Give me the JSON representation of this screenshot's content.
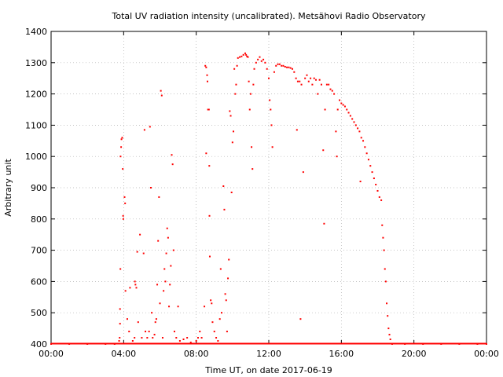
{
  "chart_data": {
    "type": "scatter",
    "title": "Total UV radiation intensity (uncalibrated). Metsähovi Radio Observatory",
    "xlabel": "Time UT, on date 2017-06-19",
    "ylabel": "Arbitrary unit",
    "xlim": [
      0,
      24
    ],
    "ylim": [
      400,
      1400
    ],
    "x_ticks": [
      "00:00",
      "04:00",
      "08:00",
      "12:00",
      "16:00",
      "20:00",
      "00:00"
    ],
    "y_ticks": [
      400,
      500,
      600,
      700,
      800,
      900,
      1000,
      1100,
      1200,
      1300,
      1400
    ],
    "grid": true,
    "legend": "none",
    "series_color": "#ff0000",
    "series": [
      {
        "x_unit": "hours UT",
        "points": [
          [
            0.0,
            400
          ],
          [
            1.0,
            400
          ],
          [
            2.0,
            400
          ],
          [
            3.0,
            400
          ],
          [
            3.5,
            400
          ],
          [
            3.75,
            410
          ],
          [
            3.78,
            420
          ],
          [
            3.8,
            465
          ],
          [
            3.8,
            512
          ],
          [
            3.82,
            640
          ],
          [
            3.83,
            1000
          ],
          [
            3.86,
            1030
          ],
          [
            3.88,
            1055
          ],
          [
            3.92,
            1060
          ],
          [
            3.95,
            960
          ],
          [
            3.97,
            810
          ],
          [
            3.98,
            800
          ],
          [
            4.05,
            870
          ],
          [
            4.08,
            850
          ],
          [
            4.1,
            570
          ],
          [
            4.2,
            480
          ],
          [
            4.3,
            440
          ],
          [
            4.35,
            580
          ],
          [
            4.5,
            410
          ],
          [
            4.6,
            420
          ],
          [
            4.62,
            600
          ],
          [
            4.65,
            590
          ],
          [
            4.7,
            580
          ],
          [
            4.75,
            695
          ],
          [
            4.8,
            470
          ],
          [
            4.9,
            750
          ],
          [
            5.0,
            420
          ],
          [
            5.1,
            690
          ],
          [
            5.15,
            1085
          ],
          [
            5.2,
            440
          ],
          [
            5.3,
            420
          ],
          [
            5.4,
            440
          ],
          [
            5.45,
            1095
          ],
          [
            5.5,
            900
          ],
          [
            5.55,
            500
          ],
          [
            5.6,
            420
          ],
          [
            5.7,
            430
          ],
          [
            5.75,
            470
          ],
          [
            5.8,
            480
          ],
          [
            5.85,
            590
          ],
          [
            5.9,
            730
          ],
          [
            5.95,
            870
          ],
          [
            6.0,
            530
          ],
          [
            6.05,
            1210
          ],
          [
            6.1,
            1195
          ],
          [
            6.15,
            420
          ],
          [
            6.2,
            570
          ],
          [
            6.25,
            640
          ],
          [
            6.3,
            600
          ],
          [
            6.35,
            690
          ],
          [
            6.4,
            770
          ],
          [
            6.45,
            740
          ],
          [
            6.5,
            520
          ],
          [
            6.55,
            590
          ],
          [
            6.6,
            650
          ],
          [
            6.65,
            1005
          ],
          [
            6.7,
            975
          ],
          [
            6.75,
            700
          ],
          [
            6.8,
            440
          ],
          [
            6.9,
            420
          ],
          [
            7.0,
            520
          ],
          [
            7.1,
            410
          ],
          [
            7.3,
            415
          ],
          [
            7.5,
            420
          ],
          [
            7.7,
            405
          ],
          [
            8.0,
            410
          ],
          [
            8.1,
            420
          ],
          [
            8.2,
            440
          ],
          [
            8.3,
            420
          ],
          [
            8.45,
            520
          ],
          [
            8.5,
            1290
          ],
          [
            8.55,
            1285
          ],
          [
            8.55,
            1010
          ],
          [
            8.6,
            1260
          ],
          [
            8.62,
            1240
          ],
          [
            8.65,
            1150
          ],
          [
            8.7,
            1150
          ],
          [
            8.72,
            970
          ],
          [
            8.73,
            810
          ],
          [
            8.75,
            680
          ],
          [
            8.8,
            540
          ],
          [
            8.85,
            530
          ],
          [
            8.9,
            470
          ],
          [
            9.0,
            440
          ],
          [
            9.1,
            420
          ],
          [
            9.2,
            410
          ],
          [
            9.3,
            480
          ],
          [
            9.35,
            640
          ],
          [
            9.4,
            500
          ],
          [
            9.5,
            905
          ],
          [
            9.55,
            830
          ],
          [
            9.6,
            560
          ],
          [
            9.65,
            540
          ],
          [
            9.7,
            440
          ],
          [
            9.75,
            610
          ],
          [
            9.8,
            670
          ],
          [
            9.85,
            1145
          ],
          [
            9.9,
            1130
          ],
          [
            9.95,
            885
          ],
          [
            10.0,
            1045
          ],
          [
            10.05,
            1080
          ],
          [
            10.1,
            1280
          ],
          [
            10.15,
            1200
          ],
          [
            10.2,
            1230
          ],
          [
            10.25,
            1290
          ],
          [
            10.3,
            1315
          ],
          [
            10.4,
            1318
          ],
          [
            10.5,
            1320
          ],
          [
            10.6,
            1325
          ],
          [
            10.7,
            1330
          ],
          [
            10.75,
            1325
          ],
          [
            10.8,
            1320
          ],
          [
            10.85,
            1318
          ],
          [
            10.9,
            1240
          ],
          [
            10.95,
            1150
          ],
          [
            11.0,
            1200
          ],
          [
            11.05,
            1030
          ],
          [
            11.1,
            960
          ],
          [
            11.15,
            1230
          ],
          [
            11.2,
            1280
          ],
          [
            11.3,
            1300
          ],
          [
            11.4,
            1310
          ],
          [
            11.5,
            1318
          ],
          [
            11.6,
            1305
          ],
          [
            11.7,
            1310
          ],
          [
            11.8,
            1300
          ],
          [
            11.9,
            1280
          ],
          [
            12.0,
            1250
          ],
          [
            12.05,
            1180
          ],
          [
            12.1,
            1150
          ],
          [
            12.15,
            1100
          ],
          [
            12.2,
            1030
          ],
          [
            12.3,
            1270
          ],
          [
            12.4,
            1290
          ],
          [
            12.5,
            1295
          ],
          [
            12.6,
            1295
          ],
          [
            12.7,
            1290
          ],
          [
            12.8,
            1290
          ],
          [
            12.9,
            1287
          ],
          [
            13.0,
            1285
          ],
          [
            13.1,
            1285
          ],
          [
            13.2,
            1283
          ],
          [
            13.3,
            1280
          ],
          [
            13.4,
            1270
          ],
          [
            13.5,
            1250
          ],
          [
            13.55,
            1085
          ],
          [
            13.6,
            1240
          ],
          [
            13.7,
            1240
          ],
          [
            13.75,
            480
          ],
          [
            13.8,
            1230
          ],
          [
            13.9,
            950
          ],
          [
            14.0,
            1250
          ],
          [
            14.1,
            1260
          ],
          [
            14.2,
            1240
          ],
          [
            14.3,
            1250
          ],
          [
            14.4,
            1230
          ],
          [
            14.5,
            1250
          ],
          [
            14.6,
            1245
          ],
          [
            14.7,
            1200
          ],
          [
            14.8,
            1245
          ],
          [
            14.9,
            1230
          ],
          [
            15.0,
            1020
          ],
          [
            15.05,
            785
          ],
          [
            15.1,
            1150
          ],
          [
            15.2,
            1230
          ],
          [
            15.3,
            1230
          ],
          [
            15.4,
            1215
          ],
          [
            15.5,
            1210
          ],
          [
            15.6,
            1200
          ],
          [
            15.7,
            1080
          ],
          [
            15.75,
            1000
          ],
          [
            15.8,
            1150
          ],
          [
            15.9,
            1180
          ],
          [
            16.0,
            1170
          ],
          [
            16.1,
            1165
          ],
          [
            16.2,
            1160
          ],
          [
            16.3,
            1150
          ],
          [
            16.4,
            1140
          ],
          [
            16.5,
            1130
          ],
          [
            16.6,
            1120
          ],
          [
            16.7,
            1110
          ],
          [
            16.8,
            1100
          ],
          [
            16.9,
            1090
          ],
          [
            17.0,
            1080
          ],
          [
            17.05,
            920
          ],
          [
            17.1,
            1060
          ],
          [
            17.2,
            1050
          ],
          [
            17.3,
            1030
          ],
          [
            17.4,
            1010
          ],
          [
            17.5,
            990
          ],
          [
            17.6,
            970
          ],
          [
            17.7,
            950
          ],
          [
            17.8,
            930
          ],
          [
            17.9,
            910
          ],
          [
            18.0,
            890
          ],
          [
            18.1,
            870
          ],
          [
            18.2,
            860
          ],
          [
            18.25,
            780
          ],
          [
            18.3,
            740
          ],
          [
            18.35,
            700
          ],
          [
            18.4,
            640
          ],
          [
            18.45,
            600
          ],
          [
            18.5,
            530
          ],
          [
            18.55,
            490
          ],
          [
            18.6,
            450
          ],
          [
            18.65,
            430
          ],
          [
            18.7,
            415
          ],
          [
            18.8,
            400
          ],
          [
            19.5,
            400
          ],
          [
            20.5,
            400
          ],
          [
            21.5,
            400
          ],
          [
            22.5,
            400
          ],
          [
            23.5,
            400
          ],
          [
            24.0,
            400
          ]
        ]
      }
    ]
  }
}
